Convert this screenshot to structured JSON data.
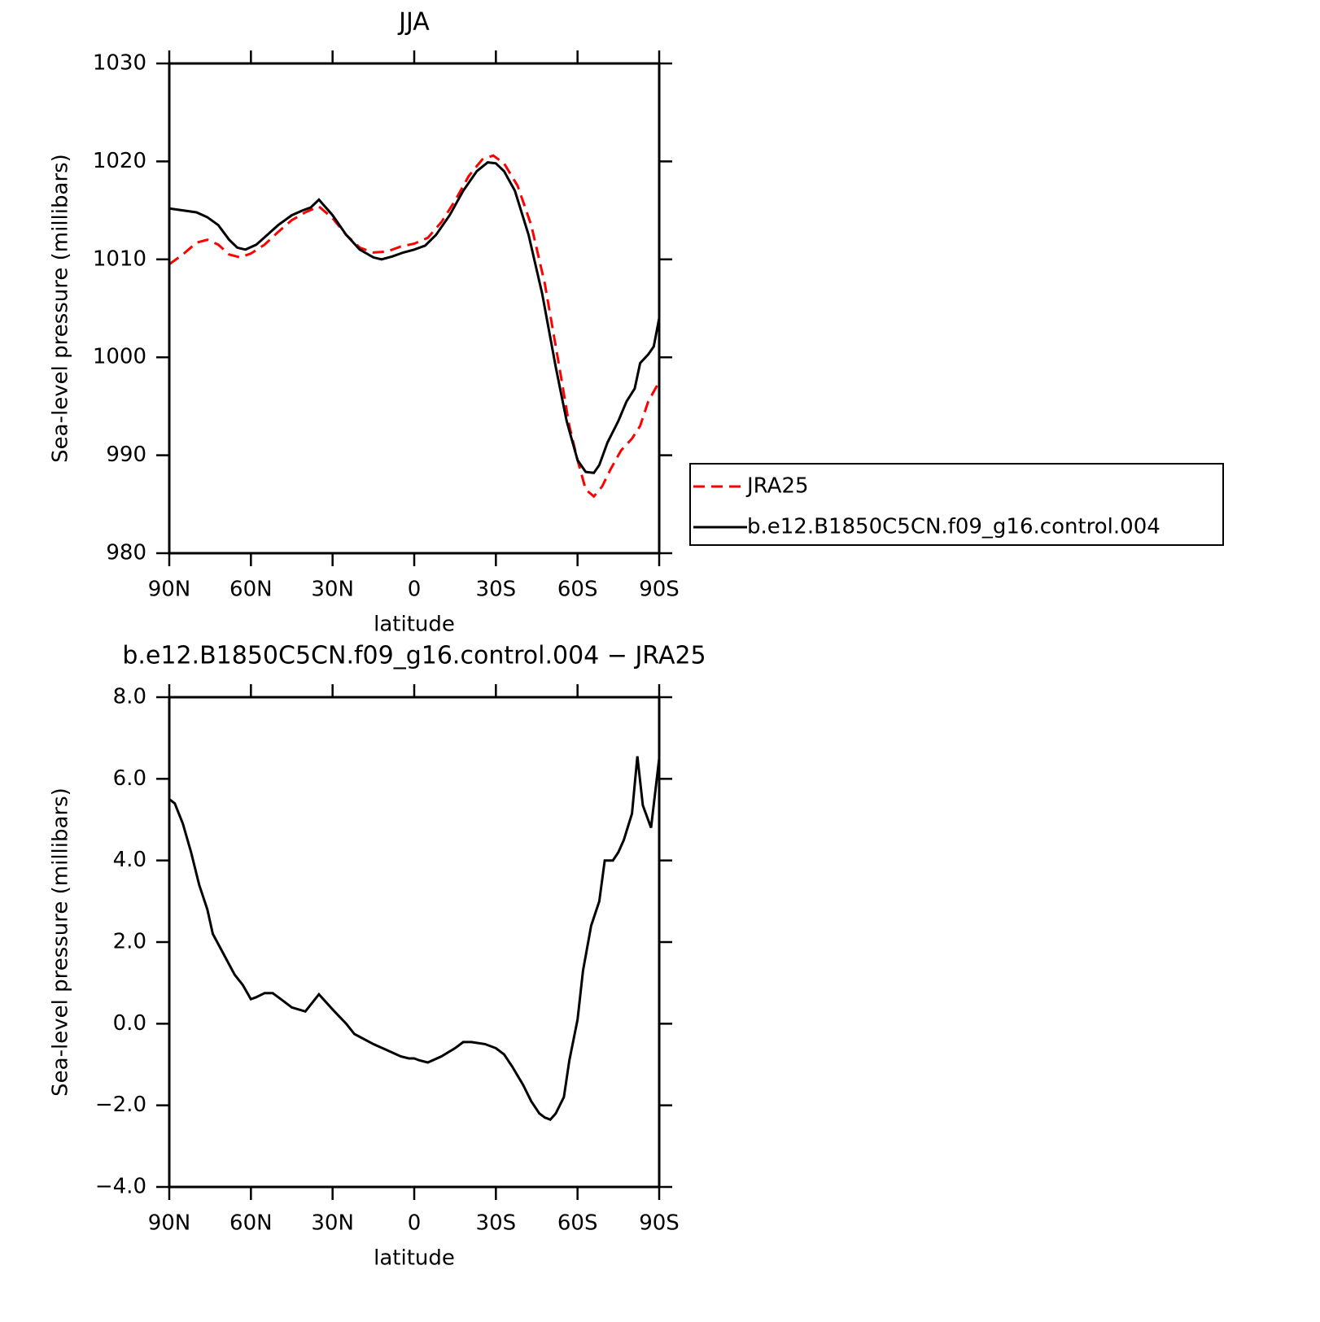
{
  "chart_data": [
    {
      "type": "line",
      "title": "JJA",
      "xlabel": "latitude",
      "ylabel": "Sea-level pressure (millibars)",
      "xlim": [
        90,
        -90
      ],
      "xticks": [
        {
          "value": 90,
          "label": "90N"
        },
        {
          "value": 60,
          "label": "60N"
        },
        {
          "value": 30,
          "label": "30N"
        },
        0,
        {
          "value": -30,
          "label": "30S"
        },
        {
          "value": -60,
          "label": "60S"
        },
        {
          "value": -90,
          "label": "90S"
        }
      ],
      "ylim": [
        980,
        1030
      ],
      "yticks": [
        980,
        990,
        1000,
        1010,
        1020,
        1030
      ],
      "legend": "right",
      "series": [
        {
          "name": "JRA25",
          "color": "#ff0000",
          "dash": true,
          "x": [
            90,
            85,
            80,
            76,
            72,
            68,
            64,
            60,
            55,
            50,
            45,
            40,
            35,
            30,
            25,
            20,
            15,
            10,
            5,
            0,
            -5,
            -10,
            -15,
            -20,
            -25,
            -29,
            -33,
            -38,
            -43,
            -48,
            -53,
            -57,
            -60,
            -63,
            -66,
            -69,
            -72,
            -76,
            -80,
            -83,
            -86,
            -90
          ],
          "values": [
            1009.5,
            1010.5,
            1011.7,
            1012,
            1011.5,
            1010.5,
            1010.2,
            1010.6,
            1011.5,
            1012.8,
            1014,
            1014.8,
            1015.4,
            1014.2,
            1012.5,
            1011.2,
            1010.7,
            1010.8,
            1011.3,
            1011.6,
            1012.2,
            1013.8,
            1016,
            1018.5,
            1020.2,
            1020.6,
            1019.8,
            1017.5,
            1013.5,
            1007.5,
            999.5,
            993,
            989.5,
            986.5,
            985.8,
            986.8,
            988.5,
            990.5,
            991.7,
            993,
            995.5,
            997.5
          ]
        },
        {
          "name": "b.e12.B1850C5CN.f09_g16.control.004",
          "color": "#000000",
          "dash": false,
          "x": [
            90,
            85,
            80,
            76,
            72,
            68,
            65,
            62,
            58,
            54,
            50,
            45,
            41,
            38,
            35,
            30,
            25,
            20,
            15,
            12,
            8,
            4,
            0,
            -4,
            -8,
            -13,
            -18,
            -23,
            -27,
            -30,
            -33,
            -37,
            -42,
            -47,
            -52,
            -56,
            -60,
            -63,
            -66,
            -68,
            -71,
            -75,
            -78,
            -81,
            -83,
            -86,
            -88,
            -90
          ],
          "values": [
            1015.2,
            1015,
            1014.8,
            1014.3,
            1013.5,
            1012,
            1011.2,
            1011,
            1011.5,
            1012.5,
            1013.5,
            1014.5,
            1015,
            1015.3,
            1016.1,
            1014.5,
            1012.5,
            1011,
            1010.2,
            1010,
            1010.3,
            1010.7,
            1011,
            1011.4,
            1012.5,
            1014.5,
            1017,
            1019,
            1019.9,
            1019.8,
            1019,
            1017,
            1012.5,
            1006.5,
            999,
            993.5,
            989.5,
            988.3,
            988.2,
            989,
            991.3,
            993.5,
            995.5,
            996.8,
            999.4,
            1000.3,
            1001.1,
            1004
          ]
        }
      ]
    },
    {
      "type": "line",
      "title": "b.e12.B1850C5CN.f09_g16.control.004 − JRA25",
      "xlabel": "latitude",
      "ylabel": "Sea-level pressure (millibars)",
      "xlim": [
        90,
        -90
      ],
      "xticks": [
        {
          "value": 90,
          "label": "90N"
        },
        {
          "value": 60,
          "label": "60N"
        },
        {
          "value": 30,
          "label": "30N"
        },
        0,
        {
          "value": -30,
          "label": "30S"
        },
        {
          "value": -60,
          "label": "60S"
        },
        {
          "value": -90,
          "label": "90S"
        }
      ],
      "ylim": [
        -4,
        8
      ],
      "yticks": [
        {
          "value": -4,
          "label": "−4.0"
        },
        {
          "value": -2,
          "label": "−2.0"
        },
        {
          "value": 0,
          "label": "0.0"
        },
        {
          "value": 2,
          "label": "2.0"
        },
        {
          "value": 4,
          "label": "4.0"
        },
        {
          "value": 6,
          "label": "6.0"
        },
        {
          "value": 8,
          "label": "8.0"
        }
      ],
      "series": [
        {
          "color": "#000000",
          "dash": false,
          "x": [
            90,
            88,
            85,
            82,
            79,
            76,
            74,
            70,
            66,
            63,
            60,
            58,
            55,
            52,
            48,
            45,
            40,
            35,
            30,
            25,
            22,
            15,
            10,
            5,
            2,
            0,
            -2,
            -5,
            -10,
            -15,
            -18,
            -21,
            -26,
            -30,
            -33,
            -36,
            -40,
            -43,
            -46,
            -48,
            -50,
            -52,
            -55,
            -57,
            -60,
            -62,
            -65,
            -68,
            -70,
            -73,
            -75,
            -77,
            -80,
            -82,
            -84,
            -87,
            -90
          ],
          "values": [
            5.5,
            5.4,
            4.9,
            4.2,
            3.4,
            2.8,
            2.2,
            1.7,
            1.2,
            0.95,
            0.6,
            0.65,
            0.75,
            0.75,
            0.55,
            0.4,
            0.3,
            0.72,
            0.35,
            0,
            -0.25,
            -0.5,
            -0.65,
            -0.8,
            -0.85,
            -0.85,
            -0.9,
            -0.95,
            -0.8,
            -0.6,
            -0.45,
            -0.45,
            -0.5,
            -0.6,
            -0.75,
            -1.05,
            -1.5,
            -1.9,
            -2.2,
            -2.3,
            -2.35,
            -2.2,
            -1.8,
            -0.9,
            0.1,
            1.3,
            2.4,
            3,
            4,
            4,
            4.2,
            4.5,
            5.15,
            6.55,
            5.35,
            4.8,
            6.5
          ]
        }
      ]
    }
  ]
}
